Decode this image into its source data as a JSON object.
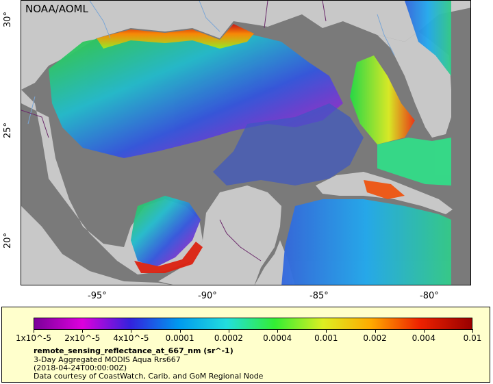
{
  "map": {
    "credit": "NOAA/AOML",
    "lat_labels": [
      "30°",
      "25°",
      "20°"
    ],
    "lon_labels": [
      "-95°",
      "-90°",
      "-85°",
      "-80°"
    ]
  },
  "legend": {
    "colorbar_ticks": [
      "1x10^-5",
      "2x10^-5",
      "4x10^-5",
      "0.0001",
      "0.0002",
      "0.0004",
      "0.001",
      "0.002",
      "0.004",
      "0.01"
    ],
    "variable_title": "remote_sensing_reflectance_at_667_nm (sr^-1)",
    "product_line": "3-Day Aggregated MODIS Aqua Rrs667",
    "date_line": "(2018-04-24T00:00:00Z)",
    "source_line": "Data courtesy of CoastWatch, Carib. and GoM Regional Node"
  },
  "colors": {
    "land": "#c8c8c8",
    "no_data": "#7a7a7a",
    "rivers": "#7aa6d6",
    "borders": "#6b2a6b",
    "legend_bg": "#ffffcc"
  }
}
